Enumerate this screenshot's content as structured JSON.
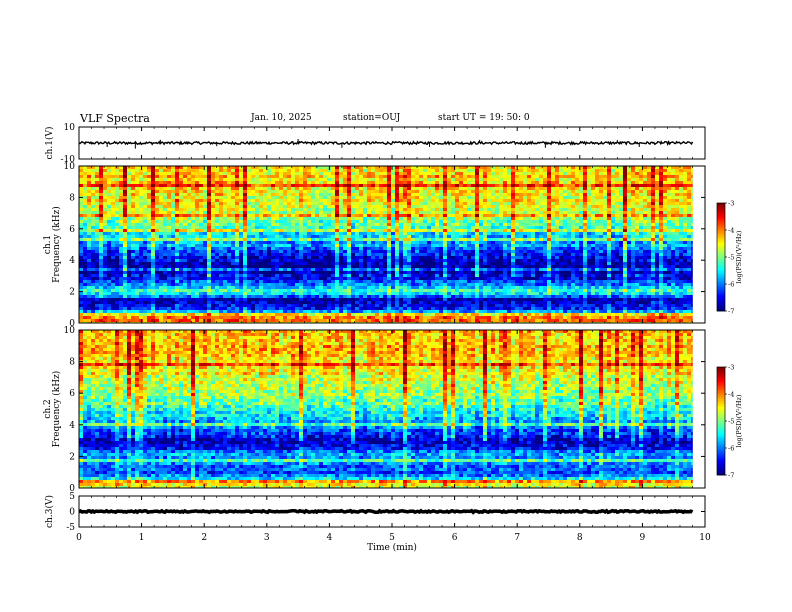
{
  "header": {
    "title": "VLF Spectra",
    "date": "Jan. 10, 2025",
    "station": "station=OUJ",
    "start_time": "start  UT =   19: 50: 0"
  },
  "chart_data": [
    {
      "type": "line",
      "ylabel": "ch.1(V)",
      "ylim": [
        -10,
        10
      ],
      "yticks": [
        10,
        -10
      ],
      "xlim": [
        0,
        10
      ],
      "trace_mean": 0,
      "trace_noise": 0.8,
      "spikes": [
        {
          "x": 0.45,
          "y": -2.5
        },
        {
          "x": 0.9,
          "y": -3.5
        },
        {
          "x": 1.3,
          "y": 2.0
        },
        {
          "x": 2.2,
          "y": -2.0
        },
        {
          "x": 3.5,
          "y": 2.5
        },
        {
          "x": 4.2,
          "y": -3.0
        },
        {
          "x": 5.6,
          "y": -2.5
        },
        {
          "x": 6.4,
          "y": 2.0
        },
        {
          "x": 7.45,
          "y": -3.0
        },
        {
          "x": 8.6,
          "y": 1.8
        },
        {
          "x": 8.95,
          "y": -2.5
        },
        {
          "x": 9.3,
          "y": 1.5
        }
      ]
    },
    {
      "type": "heatmap",
      "ylabel": "ch.1\nFrequency (kHz)",
      "ylim": [
        0,
        10
      ],
      "yticks": [
        0,
        2,
        4,
        6,
        8,
        10
      ],
      "xlim": [
        0,
        10
      ],
      "data_end_min": 9.8,
      "colorbar": {
        "label": "log(PSD)(V²/Hz)",
        "range": [
          -7,
          -3
        ],
        "ticks": [
          -3,
          -4,
          -5,
          -6,
          -7
        ]
      },
      "freq_profile": [
        {
          "f": 0.0,
          "v": -4.5
        },
        {
          "f": 0.3,
          "v": -3.7
        },
        {
          "f": 0.6,
          "v": -5.5
        },
        {
          "f": 1.0,
          "v": -6.5
        },
        {
          "f": 1.5,
          "v": -6.8
        },
        {
          "f": 2.0,
          "v": -5.2
        },
        {
          "f": 2.4,
          "v": -6.0
        },
        {
          "f": 2.8,
          "v": -6.5
        },
        {
          "f": 3.2,
          "v": -6.8
        },
        {
          "f": 3.8,
          "v": -6.9
        },
        {
          "f": 4.4,
          "v": -6.4
        },
        {
          "f": 5.0,
          "v": -5.9
        },
        {
          "f": 5.6,
          "v": -5.6
        },
        {
          "f": 6.2,
          "v": -5.2
        },
        {
          "f": 7.0,
          "v": -4.8
        },
        {
          "f": 8.0,
          "v": -4.5
        },
        {
          "f": 9.0,
          "v": -4.4
        },
        {
          "f": 10.0,
          "v": -4.3
        }
      ]
    },
    {
      "type": "heatmap",
      "ylabel": "ch.2\nFrequency (kHz)",
      "ylim": [
        0,
        10
      ],
      "yticks": [
        0,
        2,
        4,
        6,
        8,
        10
      ],
      "xlim": [
        0,
        10
      ],
      "data_end_min": 9.8,
      "colorbar": {
        "label": "log(PSD)(V²/Hz)",
        "range": [
          -7,
          -3
        ],
        "ticks": [
          -3,
          -4,
          -5,
          -6,
          -7
        ]
      },
      "freq_profile": [
        {
          "f": 0.0,
          "v": -4.8
        },
        {
          "f": 0.3,
          "v": -4.3
        },
        {
          "f": 0.6,
          "v": -5.6
        },
        {
          "f": 1.0,
          "v": -6.2
        },
        {
          "f": 1.5,
          "v": -6.0
        },
        {
          "f": 2.0,
          "v": -5.8
        },
        {
          "f": 2.5,
          "v": -6.4
        },
        {
          "f": 3.0,
          "v": -6.7
        },
        {
          "f": 3.5,
          "v": -6.3
        },
        {
          "f": 4.0,
          "v": -5.9
        },
        {
          "f": 5.0,
          "v": -5.3
        },
        {
          "f": 6.0,
          "v": -4.9
        },
        {
          "f": 7.0,
          "v": -4.6
        },
        {
          "f": 8.0,
          "v": -4.4
        },
        {
          "f": 9.0,
          "v": -4.3
        },
        {
          "f": 10.0,
          "v": -4.2
        }
      ]
    },
    {
      "type": "line",
      "ylabel": "ch.3(V)",
      "ylim": [
        -5,
        5
      ],
      "yticks": [
        5,
        0,
        -5
      ],
      "xlim": [
        0,
        10
      ],
      "xlabel": "Time (min)",
      "xticks": [
        0,
        1,
        2,
        3,
        4,
        5,
        6,
        7,
        8,
        9,
        10
      ],
      "trace_mean": 0,
      "trace_noise": 0.25
    }
  ]
}
